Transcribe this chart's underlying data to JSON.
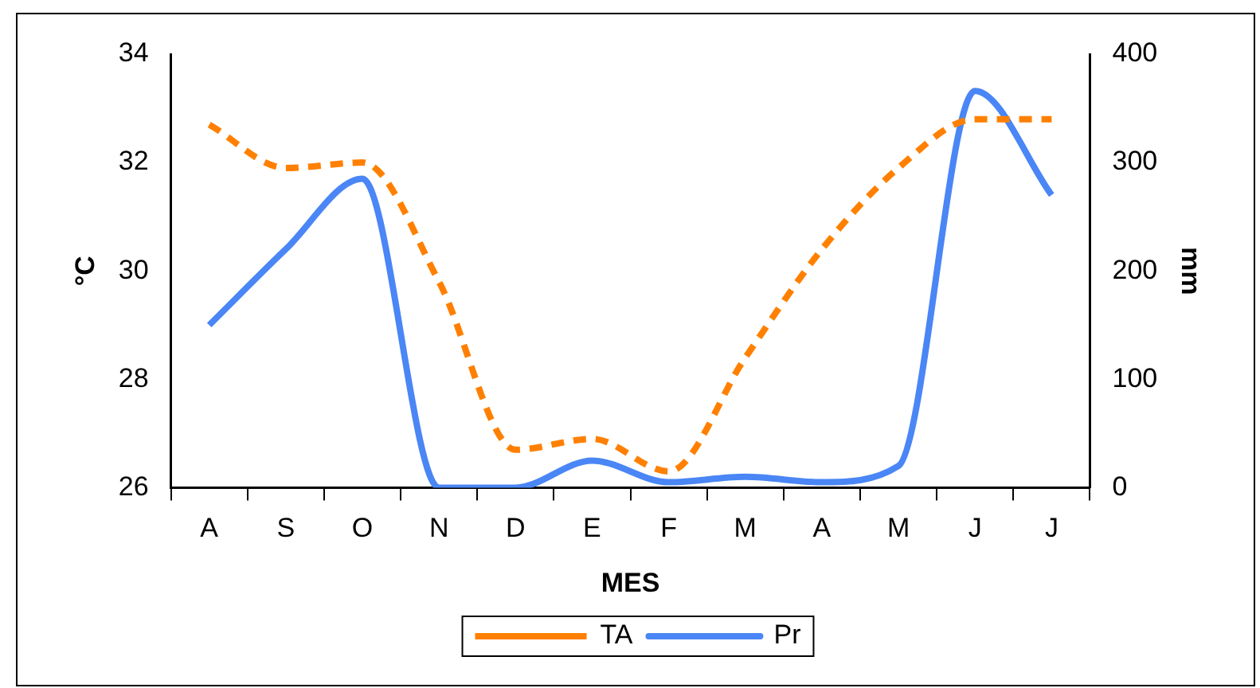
{
  "chart_data": {
    "type": "line",
    "xlabel": "MES",
    "ylabel": "°C",
    "y2label": "mm",
    "categories": [
      "A",
      "S",
      "O",
      "N",
      "D",
      "E",
      "F",
      "M",
      "A",
      "M",
      "J",
      "J"
    ],
    "series": [
      {
        "name": "TA",
        "color": "#ff8000",
        "line_style": "dashed",
        "values": [
          32.7,
          31.9,
          32.0,
          29.8,
          26.7,
          26.9,
          26.3,
          28.4,
          30.4,
          31.9,
          32.8,
          32.8
        ]
      },
      {
        "name": "Pr",
        "color": "#4a86f5",
        "line_style": "solid",
        "axis": "y2",
        "values": [
          150,
          220,
          285,
          0,
          0,
          25,
          5,
          10,
          5,
          20,
          366,
          270
        ]
      }
    ],
    "ylim": [
      26,
      34
    ],
    "yticks": [
      26,
      28,
      30,
      32,
      34
    ],
    "y2lim": [
      0,
      400
    ],
    "y2ticks": [
      0,
      100,
      200,
      300,
      400
    ],
    "grid": false,
    "legend": "bottom",
    "marker": "none"
  }
}
